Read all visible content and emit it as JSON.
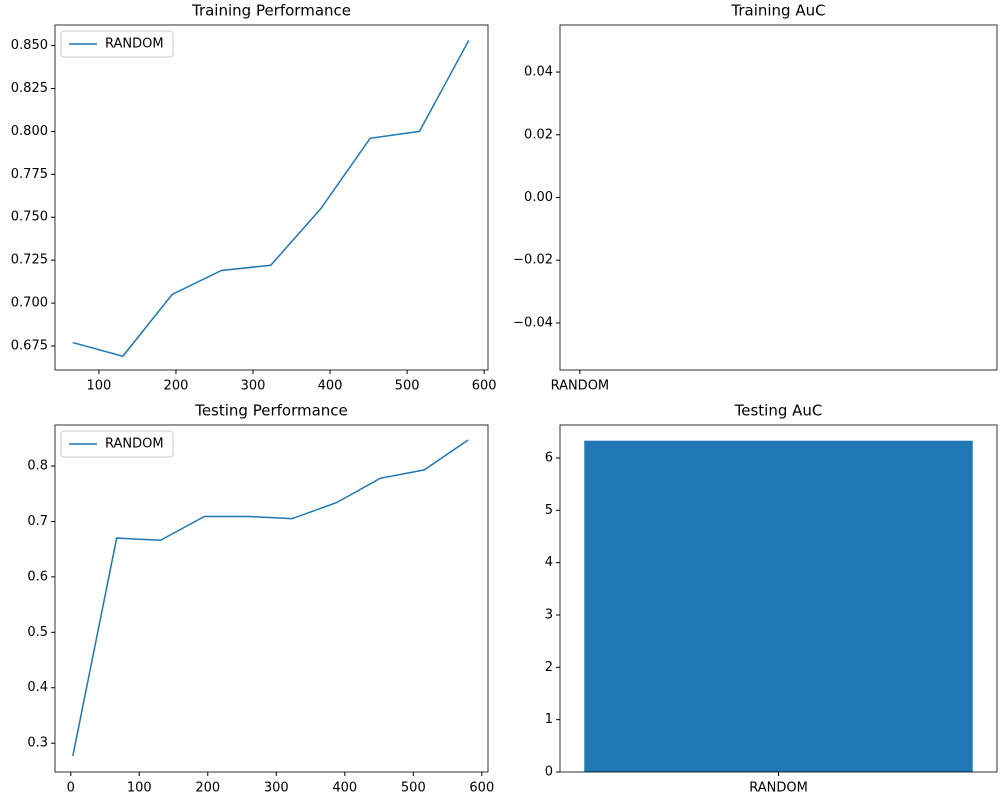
{
  "chart_data": [
    {
      "type": "line",
      "title": "Training Performance",
      "x": [
        66,
        131,
        195,
        259,
        323,
        388,
        452,
        516,
        580
      ],
      "series": [
        {
          "name": "RANDOM",
          "color": "#1f77b4",
          "values": [
            0.677,
            0.669,
            0.705,
            0.719,
            0.722,
            0.755,
            0.796,
            0.8,
            0.853
          ]
        }
      ],
      "xlim": [
        43,
        605
      ],
      "xticks": [
        100,
        200,
        300,
        400,
        500,
        600
      ],
      "ylim": [
        0.661,
        0.862
      ],
      "yticks": [
        {
          "value": 0.675,
          "label": "0.675"
        },
        {
          "value": 0.7,
          "label": "0.700"
        },
        {
          "value": 0.725,
          "label": "0.725"
        },
        {
          "value": 0.75,
          "label": "0.750"
        },
        {
          "value": 0.775,
          "label": "0.775"
        },
        {
          "value": 0.8,
          "label": "0.800"
        },
        {
          "value": 0.825,
          "label": "0.825"
        },
        {
          "value": 0.85,
          "label": "0.850"
        }
      ],
      "legend": "upper left"
    },
    {
      "type": "bar",
      "title": "Training AuC",
      "categories": [
        "RANDOM"
      ],
      "values": [
        null
      ],
      "color": "#1f77b4",
      "xlim": [
        -0.05,
        1.05
      ],
      "ylim": [
        -0.055,
        0.055
      ],
      "yticks": [
        {
          "value": -0.04,
          "label": "−0.04"
        },
        {
          "value": -0.02,
          "label": "−0.02"
        },
        {
          "value": 0,
          "label": "0.00"
        },
        {
          "value": 0.02,
          "label": "0.02"
        },
        {
          "value": 0.04,
          "label": "0.04"
        }
      ]
    },
    {
      "type": "line",
      "title": "Testing Performance",
      "x": [
        3,
        67,
        131,
        195,
        259,
        323,
        388,
        452,
        516,
        580
      ],
      "series": [
        {
          "name": "RANDOM",
          "color": "#1f77b4",
          "values": [
            0.277,
            0.67,
            0.666,
            0.709,
            0.709,
            0.705,
            0.734,
            0.778,
            0.793,
            0.847
          ]
        }
      ],
      "xlim": [
        -23,
        609
      ],
      "xticks": [
        0,
        100,
        200,
        300,
        400,
        500,
        600
      ],
      "ylim": [
        0.248,
        0.874
      ],
      "yticks": [
        0.3,
        0.4,
        0.5,
        0.6,
        0.7,
        0.8
      ],
      "legend": "upper left"
    },
    {
      "type": "bar",
      "title": "Testing AuC",
      "categories": [
        "RANDOM"
      ],
      "values": [
        6.33
      ],
      "color": "#1f77b4",
      "xlim": [
        -0.45,
        0.45
      ],
      "ylim": [
        0,
        6.63
      ],
      "yticks": [
        0,
        1,
        2,
        3,
        4,
        5,
        6
      ]
    }
  ]
}
